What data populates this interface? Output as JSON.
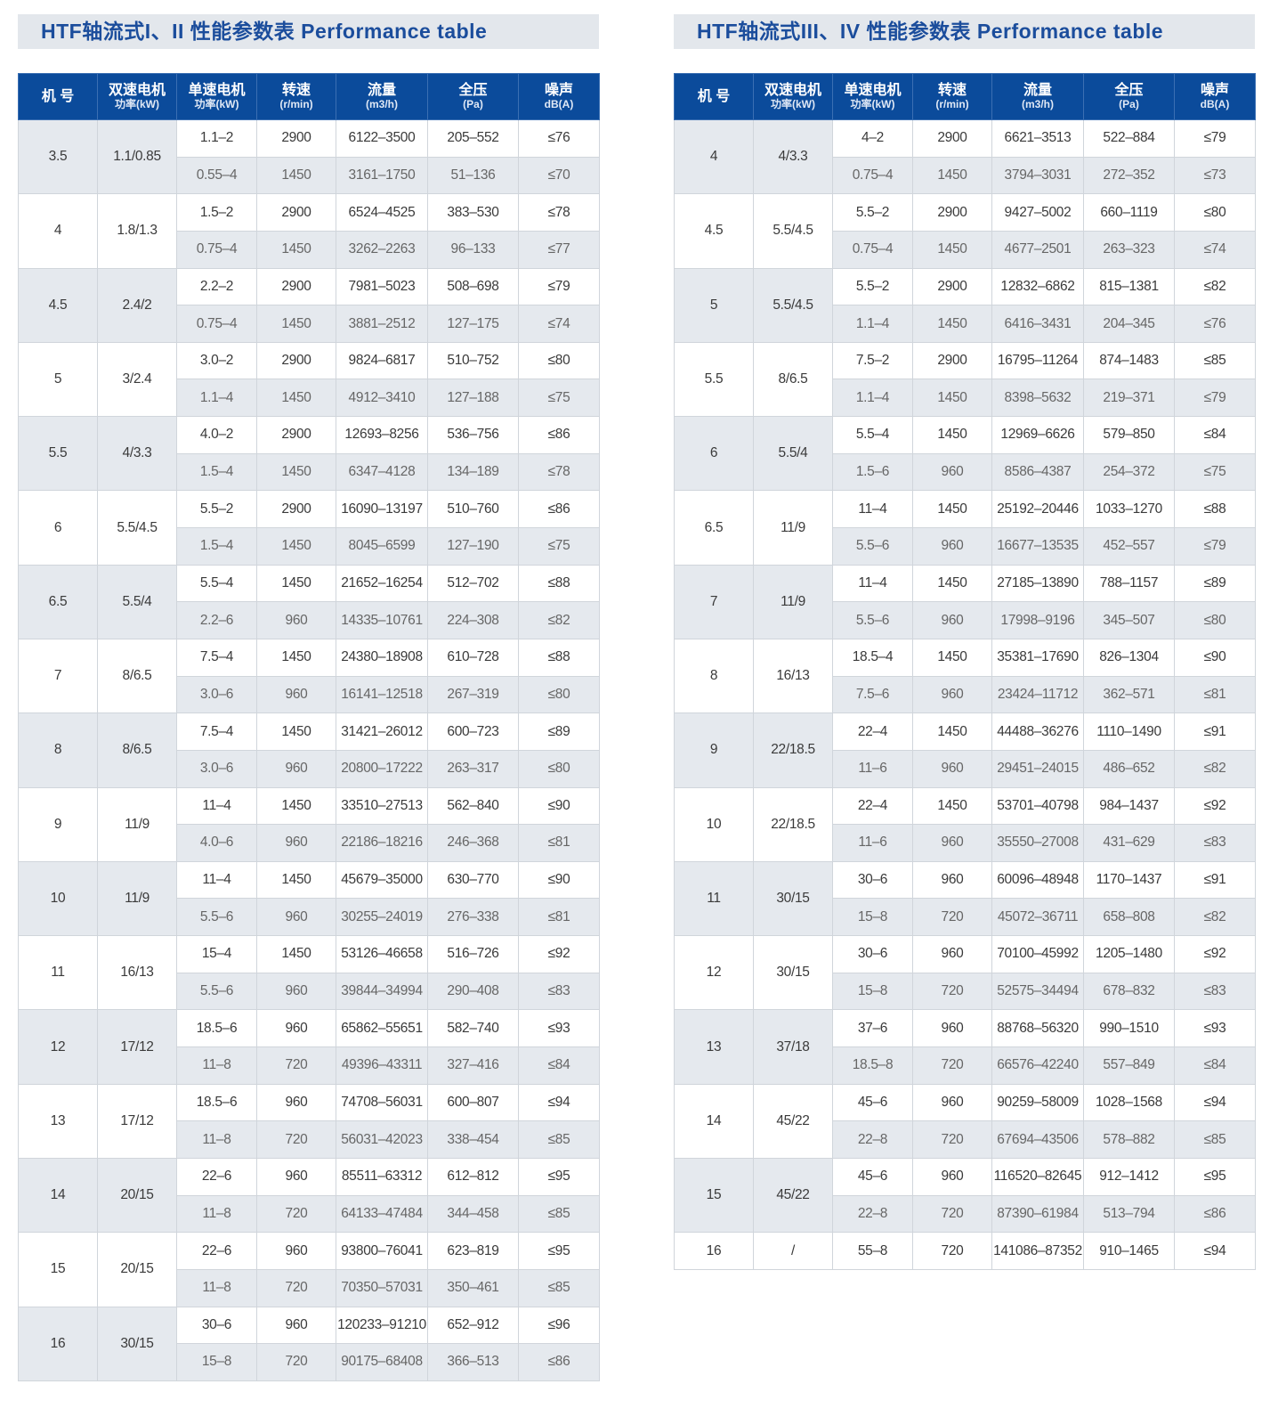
{
  "colors": {
    "header_bg": "#0b4b9b",
    "title_text": "#1b4d9c",
    "title_bg": "#e3e7ec",
    "stripe": "#e5e9ee"
  },
  "tables": [
    {
      "title": "HTF轴流式I、II 性能参数表  Performance table",
      "headers": [
        {
          "main": "机 号",
          "sub": ""
        },
        {
          "main": "双速电机",
          "sub": "功率(kW)"
        },
        {
          "main": "单速电机",
          "sub": "功率(kW)"
        },
        {
          "main": "转速",
          "sub": "(r/min)"
        },
        {
          "main": "流量",
          "sub": "(m3/h)"
        },
        {
          "main": "全压",
          "sub": "(Pa)"
        },
        {
          "main": "噪声",
          "sub": "dB(A)"
        }
      ],
      "groups": [
        {
          "no": "3.5",
          "dual": "1.1/0.85",
          "rows": [
            [
              "1.1–2",
              "2900",
              "6122–3500",
              "205–552",
              "≤76"
            ],
            [
              "0.55–4",
              "1450",
              "3161–1750",
              "51–136",
              "≤70"
            ]
          ]
        },
        {
          "no": "4",
          "dual": "1.8/1.3",
          "rows": [
            [
              "1.5–2",
              "2900",
              "6524–4525",
              "383–530",
              "≤78"
            ],
            [
              "0.75–4",
              "1450",
              "3262–2263",
              "96–133",
              "≤77"
            ]
          ]
        },
        {
          "no": "4.5",
          "dual": "2.4/2",
          "rows": [
            [
              "2.2–2",
              "2900",
              "7981–5023",
              "508–698",
              "≤79"
            ],
            [
              "0.75–4",
              "1450",
              "3881–2512",
              "127–175",
              "≤74"
            ]
          ]
        },
        {
          "no": "5",
          "dual": "3/2.4",
          "rows": [
            [
              "3.0–2",
              "2900",
              "9824–6817",
              "510–752",
              "≤80"
            ],
            [
              "1.1–4",
              "1450",
              "4912–3410",
              "127–188",
              "≤75"
            ]
          ]
        },
        {
          "no": "5.5",
          "dual": "4/3.3",
          "rows": [
            [
              "4.0–2",
              "2900",
              "12693–8256",
              "536–756",
              "≤86"
            ],
            [
              "1.5–4",
              "1450",
              "6347–4128",
              "134–189",
              "≤78"
            ]
          ]
        },
        {
          "no": "6",
          "dual": "5.5/4.5",
          "rows": [
            [
              "5.5–2",
              "2900",
              "16090–13197",
              "510–760",
              "≤86"
            ],
            [
              "1.5–4",
              "1450",
              "8045–6599",
              "127–190",
              "≤75"
            ]
          ]
        },
        {
          "no": "6.5",
          "dual": "5.5/4",
          "rows": [
            [
              "5.5–4",
              "1450",
              "21652–16254",
              "512–702",
              "≤88"
            ],
            [
              "2.2–6",
              "960",
              "14335–10761",
              "224–308",
              "≤82"
            ]
          ]
        },
        {
          "no": "7",
          "dual": "8/6.5",
          "rows": [
            [
              "7.5–4",
              "1450",
              "24380–18908",
              "610–728",
              "≤88"
            ],
            [
              "3.0–6",
              "960",
              "16141–12518",
              "267–319",
              "≤80"
            ]
          ]
        },
        {
          "no": "8",
          "dual": "8/6.5",
          "rows": [
            [
              "7.5–4",
              "1450",
              "31421–26012",
              "600–723",
              "≤89"
            ],
            [
              "3.0–6",
              "960",
              "20800–17222",
              "263–317",
              "≤80"
            ]
          ]
        },
        {
          "no": "9",
          "dual": "11/9",
          "rows": [
            [
              "11–4",
              "1450",
              "33510–27513",
              "562–840",
              "≤90"
            ],
            [
              "4.0–6",
              "960",
              "22186–18216",
              "246–368",
              "≤81"
            ]
          ]
        },
        {
          "no": "10",
          "dual": "11/9",
          "rows": [
            [
              "11–4",
              "1450",
              "45679–35000",
              "630–770",
              "≤90"
            ],
            [
              "5.5–6",
              "960",
              "30255–24019",
              "276–338",
              "≤81"
            ]
          ]
        },
        {
          "no": "11",
          "dual": "16/13",
          "rows": [
            [
              "15–4",
              "1450",
              "53126–46658",
              "516–726",
              "≤92"
            ],
            [
              "5.5–6",
              "960",
              "39844–34994",
              "290–408",
              "≤83"
            ]
          ]
        },
        {
          "no": "12",
          "dual": "17/12",
          "rows": [
            [
              "18.5–6",
              "960",
              "65862–55651",
              "582–740",
              "≤93"
            ],
            [
              "11–8",
              "720",
              "49396–43311",
              "327–416",
              "≤84"
            ]
          ]
        },
        {
          "no": "13",
          "dual": "17/12",
          "rows": [
            [
              "18.5–6",
              "960",
              "74708–56031",
              "600–807",
              "≤94"
            ],
            [
              "11–8",
              "720",
              "56031–42023",
              "338–454",
              "≤85"
            ]
          ]
        },
        {
          "no": "14",
          "dual": "20/15",
          "rows": [
            [
              "22–6",
              "960",
              "85511–63312",
              "612–812",
              "≤95"
            ],
            [
              "11–8",
              "720",
              "64133–47484",
              "344–458",
              "≤85"
            ]
          ]
        },
        {
          "no": "15",
          "dual": "20/15",
          "rows": [
            [
              "22–6",
              "960",
              "93800–76041",
              "623–819",
              "≤95"
            ],
            [
              "11–8",
              "720",
              "70350–57031",
              "350–461",
              "≤85"
            ]
          ]
        },
        {
          "no": "16",
          "dual": "30/15",
          "rows": [
            [
              "30–6",
              "960",
              "120233–91210",
              "652–912",
              "≤96"
            ],
            [
              "15–8",
              "720",
              "90175–68408",
              "366–513",
              "≤86"
            ]
          ]
        }
      ]
    },
    {
      "title": "HTF轴流式III、IV  性能参数表  Performance table",
      "headers": [
        {
          "main": "机 号",
          "sub": ""
        },
        {
          "main": "双速电机",
          "sub": "功率(kW)"
        },
        {
          "main": "单速电机",
          "sub": "功率(kW)"
        },
        {
          "main": "转速",
          "sub": "(r/min)"
        },
        {
          "main": "流量",
          "sub": "(m3/h)"
        },
        {
          "main": "全压",
          "sub": "(Pa)"
        },
        {
          "main": "噪声",
          "sub": "dB(A)"
        }
      ],
      "groups": [
        {
          "no": "4",
          "dual": "4/3.3",
          "rows": [
            [
              "4–2",
              "2900",
              "6621–3513",
              "522–884",
              "≤79"
            ],
            [
              "0.75–4",
              "1450",
              "3794–3031",
              "272–352",
              "≤73"
            ]
          ]
        },
        {
          "no": "4.5",
          "dual": "5.5/4.5",
          "rows": [
            [
              "5.5–2",
              "2900",
              "9427–5002",
              "660–1119",
              "≤80"
            ],
            [
              "0.75–4",
              "1450",
              "4677–2501",
              "263–323",
              "≤74"
            ]
          ]
        },
        {
          "no": "5",
          "dual": "5.5/4.5",
          "rows": [
            [
              "5.5–2",
              "2900",
              "12832–6862",
              "815–1381",
              "≤82"
            ],
            [
              "1.1–4",
              "1450",
              "6416–3431",
              "204–345",
              "≤76"
            ]
          ]
        },
        {
          "no": "5.5",
          "dual": "8/6.5",
          "rows": [
            [
              "7.5–2",
              "2900",
              "16795–11264",
              "874–1483",
              "≤85"
            ],
            [
              "1.1–4",
              "1450",
              "8398–5632",
              "219–371",
              "≤79"
            ]
          ]
        },
        {
          "no": "6",
          "dual": "5.5/4",
          "rows": [
            [
              "5.5–4",
              "1450",
              "12969–6626",
              "579–850",
              "≤84"
            ],
            [
              "1.5–6",
              "960",
              "8586–4387",
              "254–372",
              "≤75"
            ]
          ]
        },
        {
          "no": "6.5",
          "dual": "11/9",
          "rows": [
            [
              "11–4",
              "1450",
              "25192–20446",
              "1033–1270",
              "≤88"
            ],
            [
              "5.5–6",
              "960",
              "16677–13535",
              "452–557",
              "≤79"
            ]
          ]
        },
        {
          "no": "7",
          "dual": "11/9",
          "rows": [
            [
              "11–4",
              "1450",
              "27185–13890",
              "788–1157",
              "≤89"
            ],
            [
              "5.5–6",
              "960",
              "17998–9196",
              "345–507",
              "≤80"
            ]
          ]
        },
        {
          "no": "8",
          "dual": "16/13",
          "rows": [
            [
              "18.5–4",
              "1450",
              "35381–17690",
              "826–1304",
              "≤90"
            ],
            [
              "7.5–6",
              "960",
              "23424–11712",
              "362–571",
              "≤81"
            ]
          ]
        },
        {
          "no": "9",
          "dual": "22/18.5",
          "rows": [
            [
              "22–4",
              "1450",
              "44488–36276",
              "1110–1490",
              "≤91"
            ],
            [
              "11–6",
              "960",
              "29451–24015",
              "486–652",
              "≤82"
            ]
          ]
        },
        {
          "no": "10",
          "dual": "22/18.5",
          "rows": [
            [
              "22–4",
              "1450",
              "53701–40798",
              "984–1437",
              "≤92"
            ],
            [
              "11–6",
              "960",
              "35550–27008",
              "431–629",
              "≤83"
            ]
          ]
        },
        {
          "no": "11",
          "dual": "30/15",
          "rows": [
            [
              "30–6",
              "960",
              "60096–48948",
              "1170–1437",
              "≤91"
            ],
            [
              "15–8",
              "720",
              "45072–36711",
              "658–808",
              "≤82"
            ]
          ]
        },
        {
          "no": "12",
          "dual": "30/15",
          "rows": [
            [
              "30–6",
              "960",
              "70100–45992",
              "1205–1480",
              "≤92"
            ],
            [
              "15–8",
              "720",
              "52575–34494",
              "678–832",
              "≤83"
            ]
          ]
        },
        {
          "no": "13",
          "dual": "37/18",
          "rows": [
            [
              "37–6",
              "960",
              "88768–56320",
              "990–1510",
              "≤93"
            ],
            [
              "18.5–8",
              "720",
              "66576–42240",
              "557–849",
              "≤84"
            ]
          ]
        },
        {
          "no": "14",
          "dual": "45/22",
          "rows": [
            [
              "45–6",
              "960",
              "90259–58009",
              "1028–1568",
              "≤94"
            ],
            [
              "22–8",
              "720",
              "67694–43506",
              "578–882",
              "≤85"
            ]
          ]
        },
        {
          "no": "15",
          "dual": "45/22",
          "rows": [
            [
              "45–6",
              "960",
              "116520–82645",
              "912–1412",
              "≤95"
            ],
            [
              "22–8",
              "720",
              "87390–61984",
              "513–794",
              "≤86"
            ]
          ]
        },
        {
          "no": "16",
          "dual": "/",
          "rows": [
            [
              "55–8",
              "720",
              "141086–87352",
              "910–1465",
              "≤94"
            ]
          ]
        }
      ]
    }
  ]
}
